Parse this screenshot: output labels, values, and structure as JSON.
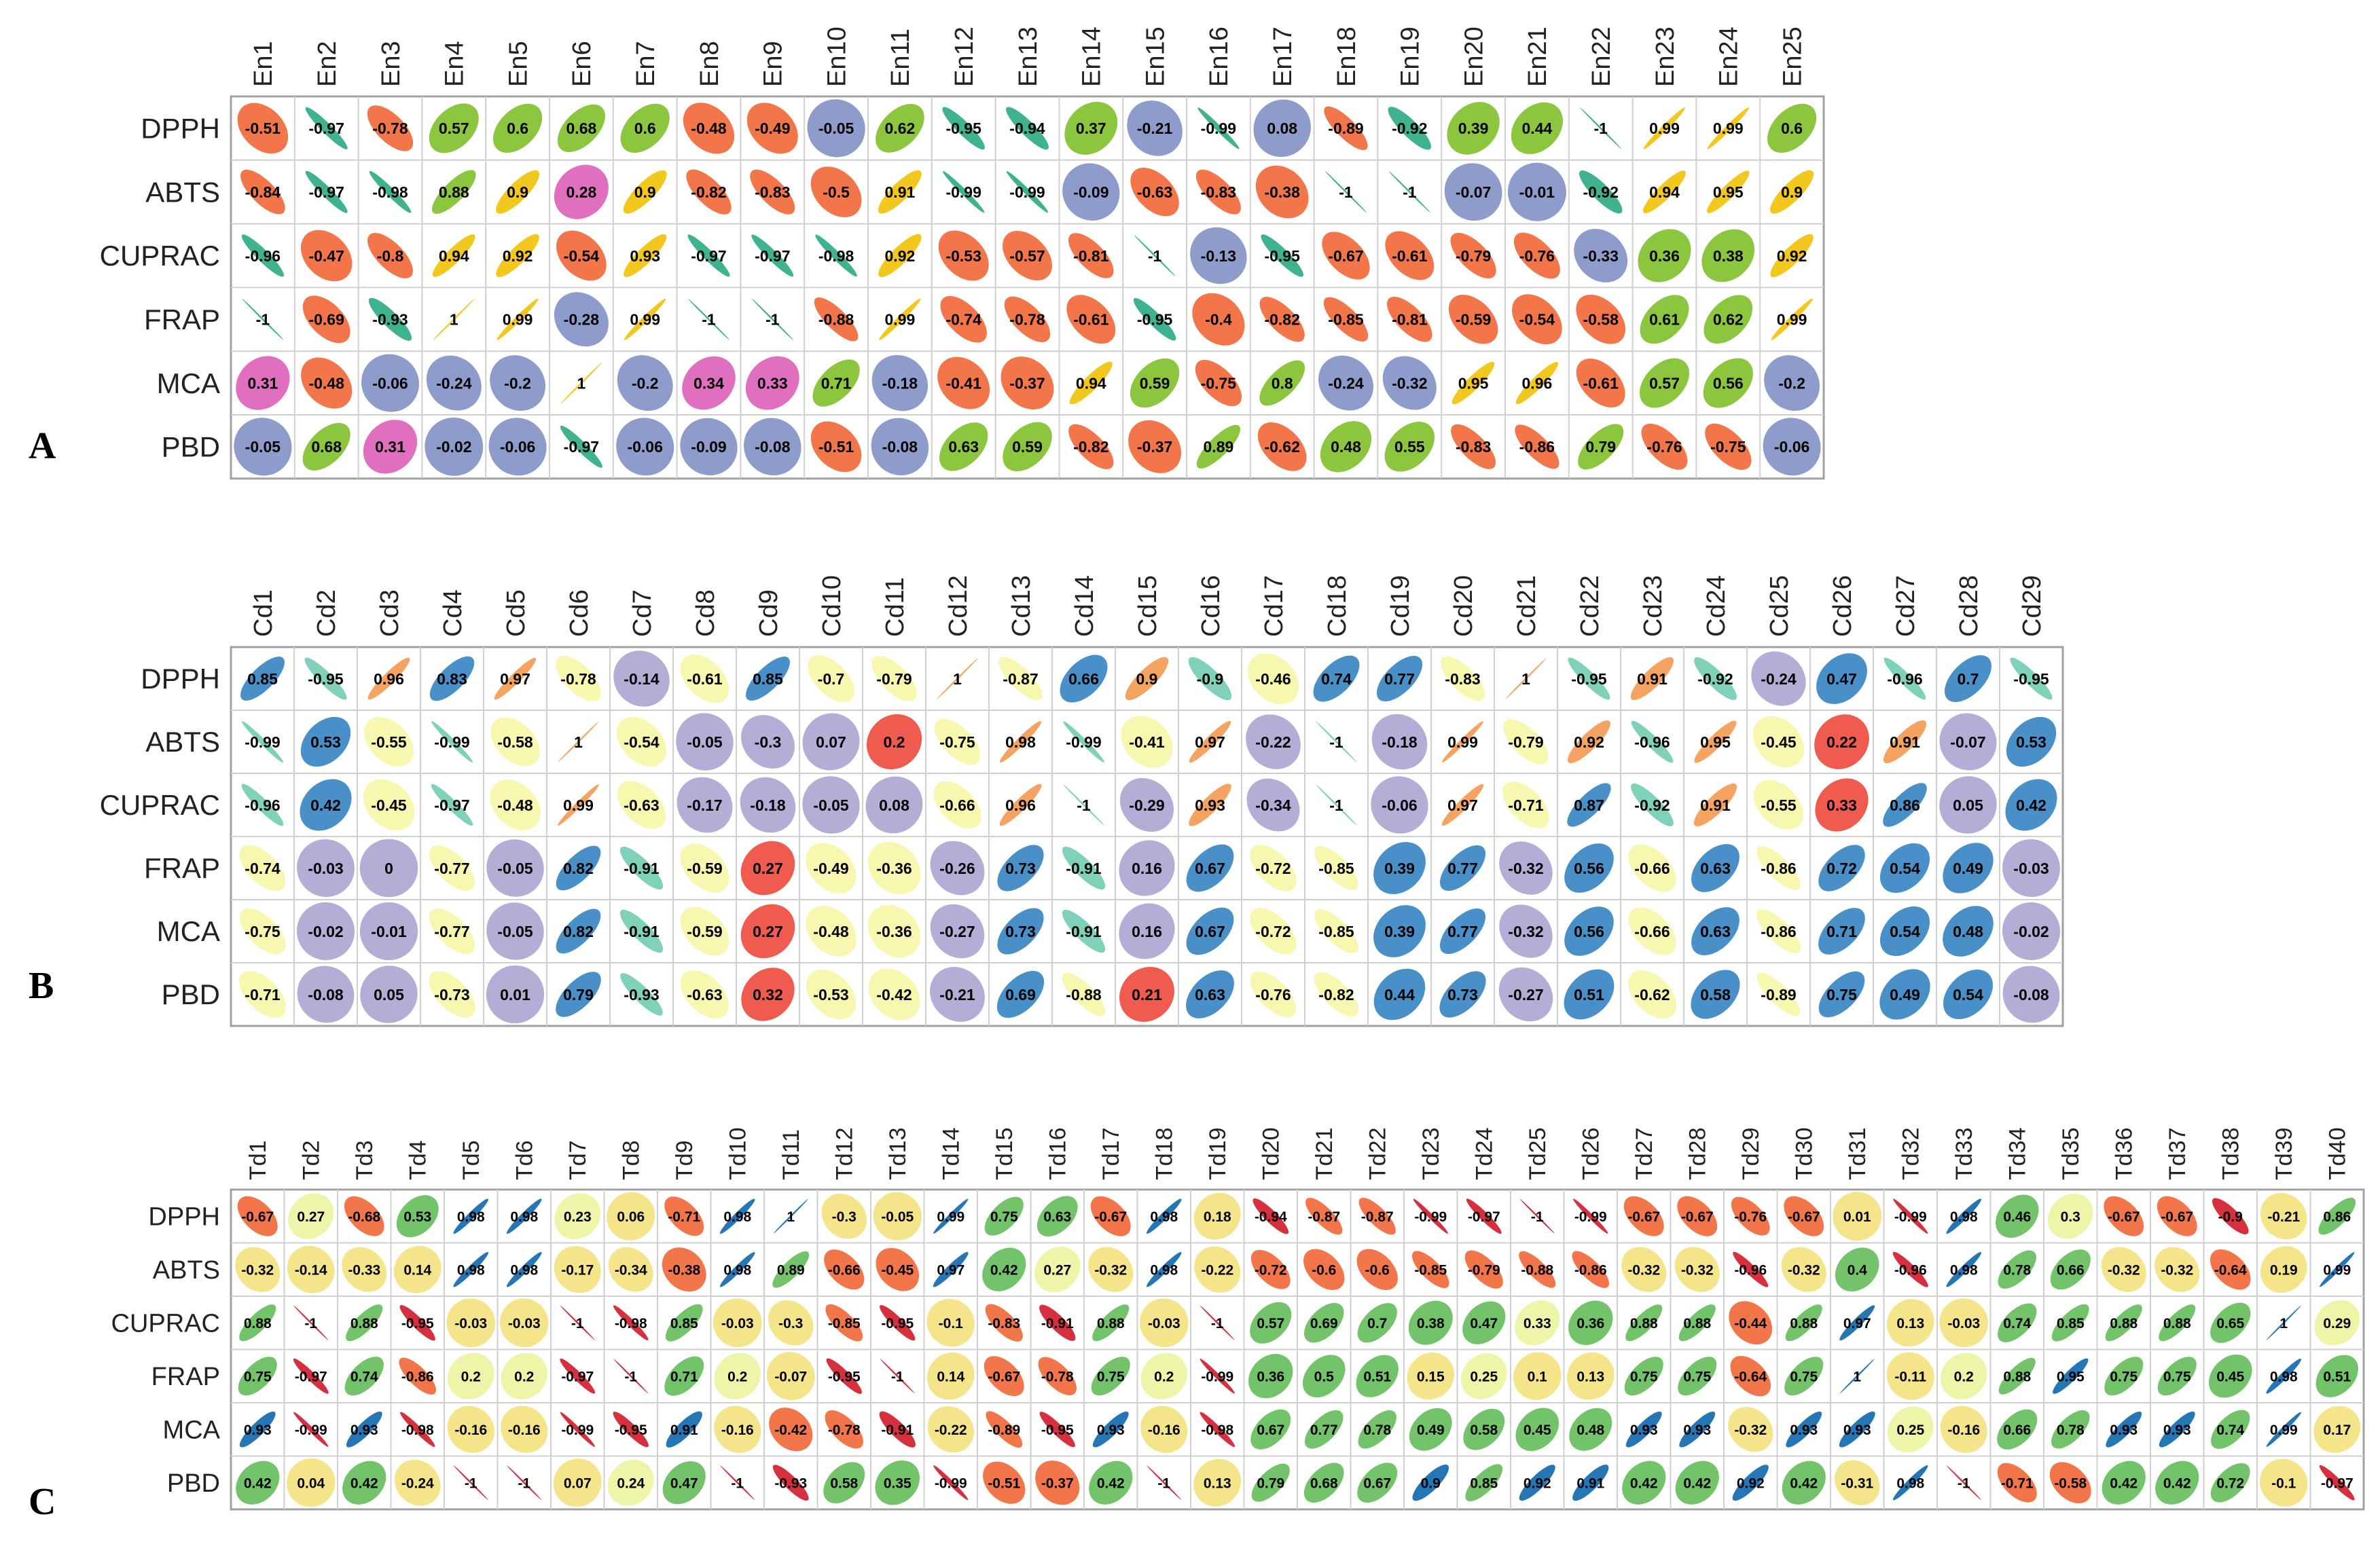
{
  "chart_data": [
    {
      "type": "heatmap",
      "subtype": "correlation-ellipse",
      "panel": "A",
      "columns": [
        "En1",
        "En2",
        "En3",
        "En4",
        "En5",
        "En6",
        "En7",
        "En8",
        "En9",
        "En10",
        "En11",
        "En12",
        "En13",
        "En14",
        "En15",
        "En16",
        "En17",
        "En18",
        "En19",
        "En20",
        "En21",
        "En22",
        "En23",
        "En24",
        "En25"
      ],
      "rows": [
        "DPPH",
        "ABTS",
        "CUPRAC",
        "FRAP",
        "MCA",
        "PBD"
      ],
      "values": [
        [
          "-0.51",
          "-0.97",
          "-0.78",
          "0.57",
          "0.6",
          "0.68",
          "0.6",
          "-0.48",
          "-0.49",
          "-0.05",
          "0.62",
          "-0.95",
          "-0.94",
          "0.37",
          "-0.21",
          "-0.99",
          "0.08",
          "-0.89",
          "-0.92",
          "0.39",
          "0.44",
          "-1",
          "0.99",
          "0.99",
          "0.6"
        ],
        [
          "-0.84",
          "-0.97",
          "-0.98",
          "0.88",
          "0.9",
          "0.28",
          "0.9",
          "-0.82",
          "-0.83",
          "-0.5",
          "0.91",
          "-0.99",
          "-0.99",
          "-0.09",
          "-0.63",
          "-0.83",
          "-0.38",
          "-1",
          "-1",
          "-0.07",
          "-0.01",
          "-0.92",
          "0.94",
          "0.95",
          "0.9"
        ],
        [
          "-0.96",
          "-0.47",
          "-0.8",
          "0.94",
          "0.92",
          "-0.54",
          "0.93",
          "-0.97",
          "-0.97",
          "-0.98",
          "0.92",
          "-0.53",
          "-0.57",
          "-0.81",
          "-1",
          "-0.13",
          "-0.95",
          "-0.67",
          "-0.61",
          "-0.79",
          "-0.76",
          "-0.33",
          "0.36",
          "0.38",
          "0.92"
        ],
        [
          "-1",
          "-0.69",
          "-0.93",
          "1",
          "0.99",
          "-0.28",
          "0.99",
          "-1",
          "-1",
          "-0.88",
          "0.99",
          "-0.74",
          "-0.78",
          "-0.61",
          "-0.95",
          "-0.4",
          "-0.82",
          "-0.85",
          "-0.81",
          "-0.59",
          "-0.54",
          "-0.58",
          "0.61",
          "0.62",
          "0.99"
        ],
        [
          "0.31",
          "-0.48",
          "-0.06",
          "-0.24",
          "-0.2",
          "1",
          "-0.2",
          "0.34",
          "0.33",
          "0.71",
          "-0.18",
          "-0.41",
          "-0.37",
          "0.94",
          "0.59",
          "-0.75",
          "0.8",
          "-0.24",
          "-0.32",
          "0.95",
          "0.96",
          "-0.61",
          "0.57",
          "0.56",
          "-0.2"
        ],
        [
          "-0.05",
          "0.68",
          "0.31",
          "-0.02",
          "-0.06",
          "-0.97",
          "-0.06",
          "-0.09",
          "-0.08",
          "-0.51",
          "-0.08",
          "0.63",
          "0.59",
          "-0.82",
          "-0.37",
          "0.89",
          "-0.62",
          "0.48",
          "0.55",
          "-0.83",
          "-0.86",
          "0.79",
          "-0.76",
          "-0.75",
          "-0.06"
        ]
      ],
      "palette": {
        "pos_strong": "#f2c81e",
        "pos_mid": "#8cc63f",
        "neg_strong": "#3fb28f",
        "neg_mid": "#f2764a",
        "weak": "#8e9ccc",
        "weak_pos": "#e06fc0"
      }
    },
    {
      "type": "heatmap",
      "subtype": "correlation-ellipse",
      "panel": "B",
      "columns": [
        "Cd1",
        "Cd2",
        "Cd3",
        "Cd4",
        "Cd5",
        "Cd6",
        "Cd7",
        "Cd8",
        "Cd9",
        "Cd10",
        "Cd11",
        "Cd12",
        "Cd13",
        "Cd14",
        "Cd15",
        "Cd16",
        "Cd17",
        "Cd18",
        "Cd19",
        "Cd20",
        "Cd21",
        "Cd22",
        "Cd23",
        "Cd24",
        "Cd25",
        "Cd26",
        "Cd27",
        "Cd28",
        "Cd29"
      ],
      "rows": [
        "DPPH",
        "ABTS",
        "CUPRAC",
        "FRAP",
        "MCA",
        "PBD"
      ],
      "values": [
        [
          "0.85",
          "-0.95",
          "0.96",
          "0.83",
          "0.97",
          "-0.78",
          "-0.14",
          "-0.61",
          "0.85",
          "-0.7",
          "-0.79",
          "1",
          "-0.87",
          "0.66",
          "0.9",
          "-0.9",
          "-0.46",
          "0.74",
          "0.77",
          "-0.83",
          "1",
          "-0.95",
          "0.91",
          "-0.92",
          "-0.24",
          "0.47",
          "-0.96",
          "0.7",
          "-0.95"
        ],
        [
          "-0.99",
          "0.53",
          "-0.55",
          "-0.99",
          "-0.58",
          "1",
          "-0.54",
          "-0.05",
          "-0.3",
          "0.07",
          "0.2",
          "-0.75",
          "0.98",
          "-0.99",
          "-0.41",
          "0.97",
          "-0.22",
          "-1",
          "-0.18",
          "0.99",
          "-0.79",
          "0.92",
          "-0.96",
          "0.95",
          "-0.45",
          "0.22",
          "0.91",
          "-0.07",
          "0.53"
        ],
        [
          "-0.96",
          "0.42",
          "-0.45",
          "-0.97",
          "-0.48",
          "0.99",
          "-0.63",
          "-0.17",
          "-0.18",
          "-0.05",
          "0.08",
          "-0.66",
          "0.96",
          "-1",
          "-0.29",
          "0.93",
          "-0.34",
          "-1",
          "-0.06",
          "0.97",
          "-0.71",
          "0.87",
          "-0.92",
          "0.91",
          "-0.55",
          "0.33",
          "0.86",
          "0.05",
          "0.42"
        ],
        [
          "-0.74",
          "-0.03",
          "0",
          "-0.77",
          "-0.05",
          "0.82",
          "-0.91",
          "-0.59",
          "0.27",
          "-0.49",
          "-0.36",
          "-0.26",
          "0.73",
          "-0.91",
          "0.16",
          "0.67",
          "-0.72",
          "-0.85",
          "0.39",
          "0.77",
          "-0.32",
          "0.56",
          "-0.66",
          "0.63",
          "-0.86",
          "0.72",
          "0.54",
          "0.49",
          "-0.03"
        ],
        [
          "-0.75",
          "-0.02",
          "-0.01",
          "-0.77",
          "-0.05",
          "0.82",
          "-0.91",
          "-0.59",
          "0.27",
          "-0.48",
          "-0.36",
          "-0.27",
          "0.73",
          "-0.91",
          "0.16",
          "0.67",
          "-0.72",
          "-0.85",
          "0.39",
          "0.77",
          "-0.32",
          "0.56",
          "-0.66",
          "0.63",
          "-0.86",
          "0.71",
          "0.54",
          "0.48",
          "-0.02"
        ],
        [
          "-0.71",
          "-0.08",
          "0.05",
          "-0.73",
          "0.01",
          "0.79",
          "-0.93",
          "-0.63",
          "0.32",
          "-0.53",
          "-0.42",
          "-0.21",
          "0.69",
          "-0.88",
          "0.21",
          "0.63",
          "-0.76",
          "-0.82",
          "0.44",
          "0.73",
          "-0.27",
          "0.51",
          "-0.62",
          "0.58",
          "-0.89",
          "0.75",
          "0.49",
          "0.54",
          "-0.08"
        ]
      ],
      "palette": {
        "pos_strong": "#f4a460",
        "pos_mid": "#4a90c8",
        "neg_strong": "#7fd1b9",
        "neg_mid": "#f7f7b0",
        "weak": "#b3aed6",
        "weak_pos": "#ef5b4f"
      }
    },
    {
      "type": "heatmap",
      "subtype": "correlation-ellipse",
      "panel": "C",
      "columns": [
        "Td1",
        "Td2",
        "Td3",
        "Td4",
        "Td5",
        "Td6",
        "Td7",
        "Td8",
        "Td9",
        "Td10",
        "Td11",
        "Td12",
        "Td13",
        "Td14",
        "Td15",
        "Td16",
        "Td17",
        "Td18",
        "Td19",
        "Td20",
        "Td21",
        "Td22",
        "Td23",
        "Td24",
        "Td25",
        "Td26",
        "Td27",
        "Td28",
        "Td29",
        "Td30",
        "Td31",
        "Td32",
        "Td33",
        "Td34",
        "Td35",
        "Td36",
        "Td37",
        "Td38",
        "Td39",
        "Td40"
      ],
      "rows": [
        "DPPH",
        "ABTS",
        "CUPRAC",
        "FRAP",
        "MCA",
        "PBD"
      ],
      "values": [
        [
          "-0.67",
          "0.27",
          "-0.68",
          "0.53",
          "0.98",
          "0.98",
          "0.23",
          "0.06",
          "-0.71",
          "0.98",
          "1",
          "-0.3",
          "-0.05",
          "0.99",
          "0.75",
          "0.63",
          "-0.67",
          "0.98",
          "0.18",
          "-0.94",
          "-0.87",
          "-0.87",
          "-0.99",
          "-0.97",
          "-1",
          "-0.99",
          "-0.67",
          "-0.67",
          "-0.76",
          "-0.67",
          "0.01",
          "-0.99",
          "0.98",
          "0.46",
          "0.3",
          "-0.67",
          "-0.67",
          "-0.9",
          "-0.21",
          "0.86"
        ],
        [
          "-0.32",
          "-0.14",
          "-0.33",
          "0.14",
          "0.98",
          "0.98",
          "-0.17",
          "-0.34",
          "-0.38",
          "0.98",
          "0.89",
          "-0.66",
          "-0.45",
          "0.97",
          "0.42",
          "0.27",
          "-0.32",
          "0.98",
          "-0.22",
          "-0.72",
          "-0.6",
          "-0.6",
          "-0.85",
          "-0.79",
          "-0.88",
          "-0.86",
          "-0.32",
          "-0.32",
          "-0.96",
          "-0.32",
          "0.4",
          "-0.96",
          "0.98",
          "0.78",
          "0.66",
          "-0.32",
          "-0.32",
          "-0.64",
          "0.19",
          "0.99"
        ],
        [
          "0.88",
          "-1",
          "0.88",
          "-0.95",
          "-0.03",
          "-0.03",
          "-1",
          "-0.98",
          "0.85",
          "-0.03",
          "-0.3",
          "-0.85",
          "-0.95",
          "-0.1",
          "-0.83",
          "-0.91",
          "0.88",
          "-0.03",
          "-1",
          "0.57",
          "0.69",
          "0.7",
          "0.38",
          "0.47",
          "0.33",
          "0.36",
          "0.88",
          "0.88",
          "-0.44",
          "0.88",
          "0.97",
          "0.13",
          "-0.03",
          "0.74",
          "0.85",
          "0.88",
          "0.88",
          "0.65",
          "1",
          "0.29"
        ],
        [
          "0.75",
          "-0.97",
          "0.74",
          "-0.86",
          "0.2",
          "0.2",
          "-0.97",
          "-1",
          "0.71",
          "0.2",
          "-0.07",
          "-0.95",
          "-1",
          "0.14",
          "-0.67",
          "-0.78",
          "0.75",
          "0.2",
          "-0.99",
          "0.36",
          "0.5",
          "0.51",
          "0.15",
          "0.25",
          "0.1",
          "0.13",
          "0.75",
          "0.75",
          "-0.64",
          "0.75",
          "1",
          "-0.11",
          "0.2",
          "0.88",
          "0.95",
          "0.75",
          "0.75",
          "0.45",
          "0.98",
          "0.51"
        ],
        [
          "0.93",
          "-0.99",
          "0.93",
          "-0.98",
          "-0.16",
          "-0.16",
          "-0.99",
          "-0.95",
          "0.91",
          "-0.16",
          "-0.42",
          "-0.78",
          "-0.91",
          "-0.22",
          "-0.89",
          "-0.95",
          "0.93",
          "-0.16",
          "-0.98",
          "0.67",
          "0.77",
          "0.78",
          "0.49",
          "0.58",
          "0.45",
          "0.48",
          "0.93",
          "0.93",
          "-0.32",
          "0.93",
          "0.93",
          "0.25",
          "-0.16",
          "0.66",
          "0.78",
          "0.93",
          "0.93",
          "0.74",
          "0.99",
          "0.17"
        ],
        [
          "0.42",
          "0.04",
          "0.42",
          "-0.24",
          "-1",
          "-1",
          "0.07",
          "0.24",
          "0.47",
          "-1",
          "-0.93",
          "0.58",
          "0.35",
          "-0.99",
          "-0.51",
          "-0.37",
          "0.42",
          "-1",
          "0.13",
          "0.79",
          "0.68",
          "0.67",
          "0.9",
          "0.85",
          "0.92",
          "0.91",
          "0.42",
          "0.42",
          "0.92",
          "0.42",
          "-0.31",
          "0.98",
          "-1",
          "-0.71",
          "-0.58",
          "0.42",
          "0.42",
          "0.72",
          "-0.1",
          "-0.97"
        ]
      ],
      "palette": {
        "pos_strong": "#2476b5",
        "pos_mid": "#72c36a",
        "neg_strong": "#d62f3d",
        "neg_mid": "#f2764a",
        "weak": "#f4e48a",
        "weak_pos": "#eef5a8"
      }
    }
  ]
}
